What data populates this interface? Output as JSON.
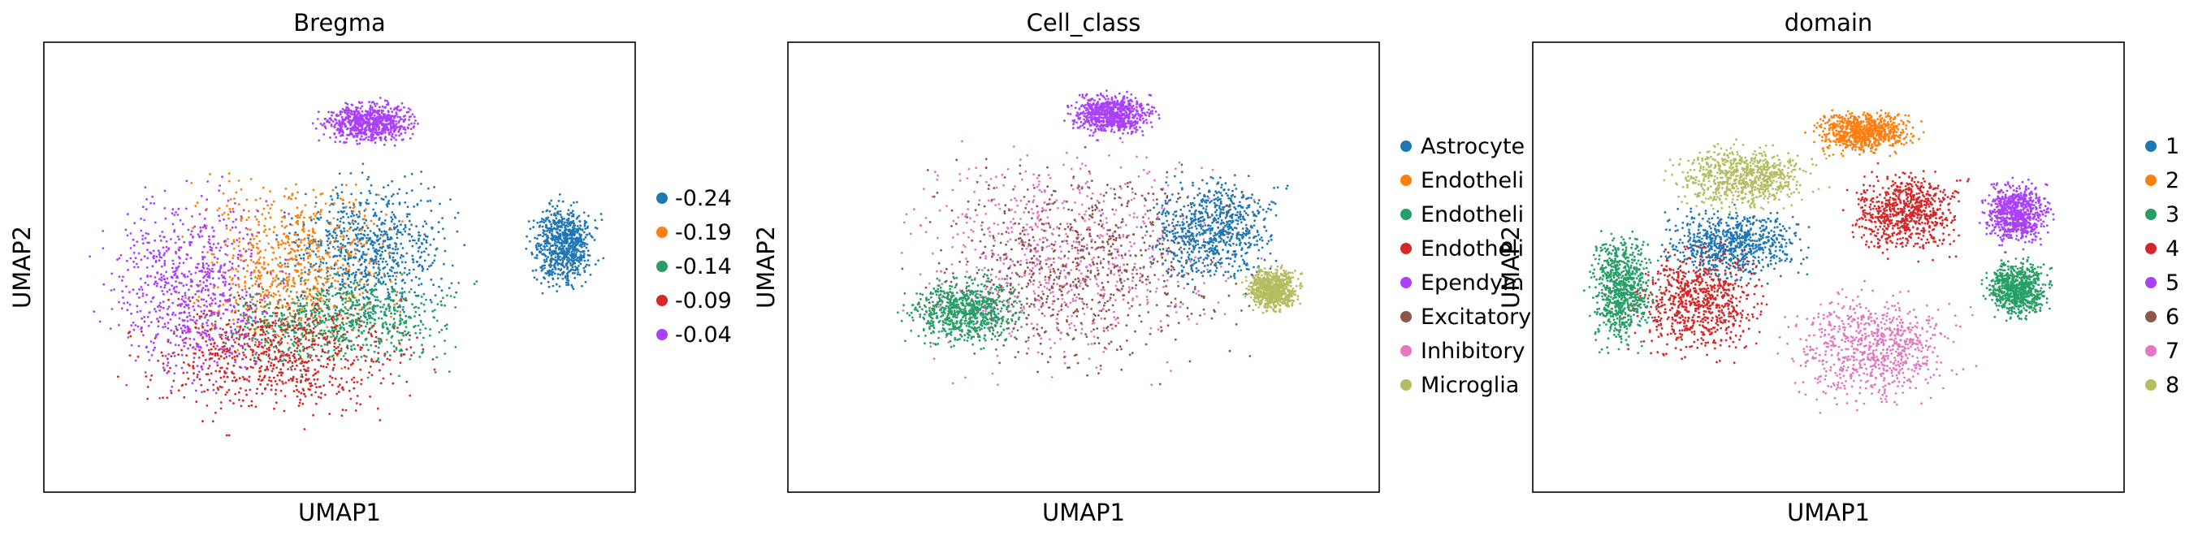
{
  "chart_data": [
    {
      "type": "scatter",
      "title": "Bregma",
      "xlabel": "UMAP1",
      "ylabel": "UMAP2",
      "xticks": [],
      "yticks": [],
      "legend": {
        "placement": "right",
        "entries": [
          {
            "label": "-0.24",
            "color": "#1f77b4"
          },
          {
            "label": "-0.19",
            "color": "#ff7f0e"
          },
          {
            "label": "-0.14",
            "color": "#279e68"
          },
          {
            "label": "-0.09",
            "color": "#d62728"
          },
          {
            "label": "-0.04",
            "color": "#aa40fc"
          }
        ]
      }
    },
    {
      "type": "scatter",
      "title": "Cell_class",
      "xlabel": "UMAP1",
      "ylabel": "UMAP2",
      "xticks": [],
      "yticks": [],
      "legend": {
        "placement": "right",
        "entries": [
          {
            "label": "Astrocyte",
            "color": "#1f77b4"
          },
          {
            "label": "Endotheli",
            "color": "#ff7f0e"
          },
          {
            "label": "Endotheli",
            "color": "#279e68"
          },
          {
            "label": "Endotheli",
            "color": "#d62728"
          },
          {
            "label": "Ependym",
            "color": "#aa40fc"
          },
          {
            "label": "Excitatory",
            "color": "#8c564b"
          },
          {
            "label": "Inhibitory",
            "color": "#e377c2"
          },
          {
            "label": "Microglia",
            "color": "#b5bd61"
          }
        ]
      }
    },
    {
      "type": "scatter",
      "title": "domain",
      "xlabel": "UMAP1",
      "ylabel": "UMAP2",
      "xticks": [],
      "yticks": [],
      "legend": {
        "placement": "right",
        "entries": [
          {
            "label": "1",
            "color": "#1f77b4"
          },
          {
            "label": "2",
            "color": "#ff7f0e"
          },
          {
            "label": "3",
            "color": "#279e68"
          },
          {
            "label": "4",
            "color": "#d62728"
          },
          {
            "label": "5",
            "color": "#aa40fc"
          },
          {
            "label": "6",
            "color": "#8c564b"
          },
          {
            "label": "7",
            "color": "#e377c2"
          },
          {
            "label": "8",
            "color": "#b5bd61"
          }
        ]
      }
    }
  ]
}
